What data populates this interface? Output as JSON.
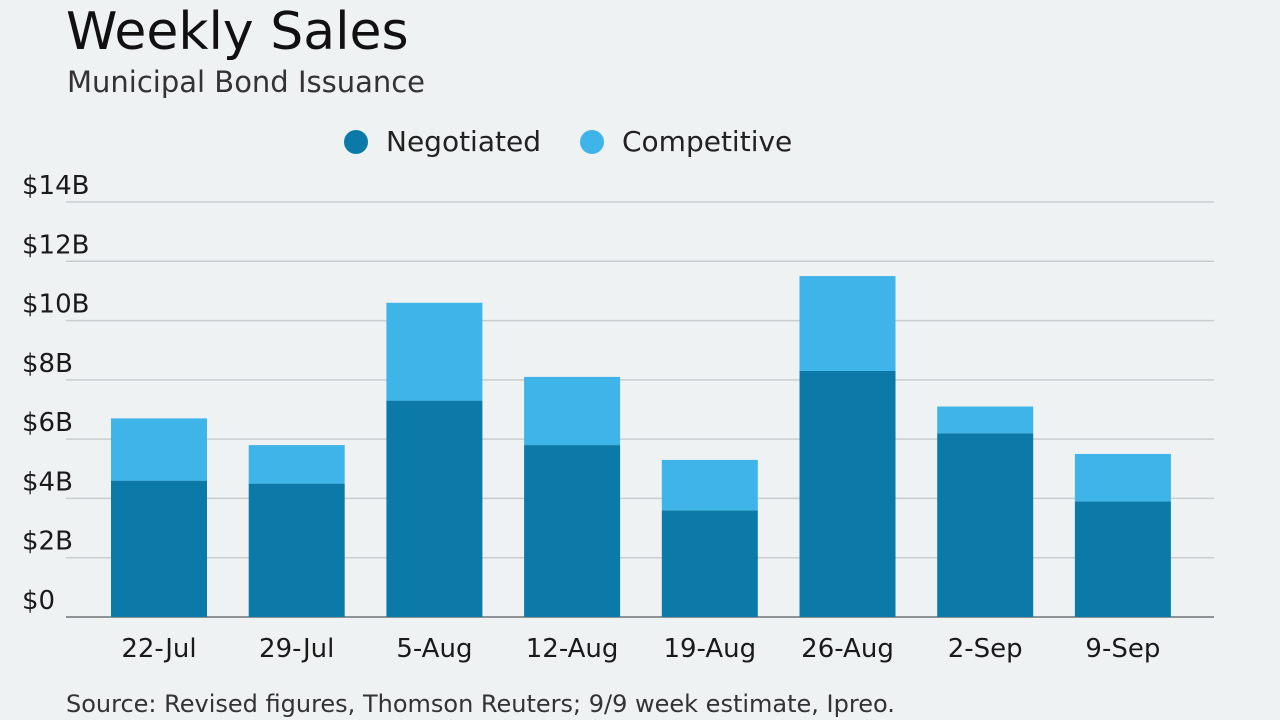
{
  "header": {
    "title": "Weekly Sales",
    "subtitle": "Municipal Bond Issuance"
  },
  "footer": {
    "source": "Source: Revised figures, Thomson Reuters; 9/9 week estimate, Ipreo."
  },
  "colors": {
    "negotiated": "#0b7aa8",
    "competitive": "#3fb4e8",
    "grid": "#c9cdcf",
    "axis": "#8e9396"
  },
  "chart_data": {
    "type": "bar",
    "stacked": true,
    "title": "Weekly Sales",
    "subtitle": "Municipal Bond Issuance",
    "xlabel": "",
    "ylabel": "",
    "categories": [
      "22-Jul",
      "29-Jul",
      "5-Aug",
      "12-Aug",
      "19-Aug",
      "26-Aug",
      "2-Sep",
      "9-Sep"
    ],
    "series": [
      {
        "name": "Negotiated",
        "values": [
          4.6,
          4.5,
          7.3,
          5.8,
          3.6,
          8.3,
          6.2,
          3.9
        ]
      },
      {
        "name": "Competitive",
        "values": [
          2.1,
          1.3,
          3.3,
          2.3,
          1.7,
          3.2,
          0.9,
          1.6
        ]
      }
    ],
    "ylim": [
      0,
      14
    ],
    "yticks": [
      0,
      2,
      4,
      6,
      8,
      10,
      12,
      14
    ],
    "ytick_labels": [
      "$0",
      "$2B",
      "$4B",
      "$6B",
      "$8B",
      "$10B",
      "$12B",
      "$14B"
    ],
    "unit": "$B",
    "grid": true,
    "legend_position": "top-center"
  }
}
